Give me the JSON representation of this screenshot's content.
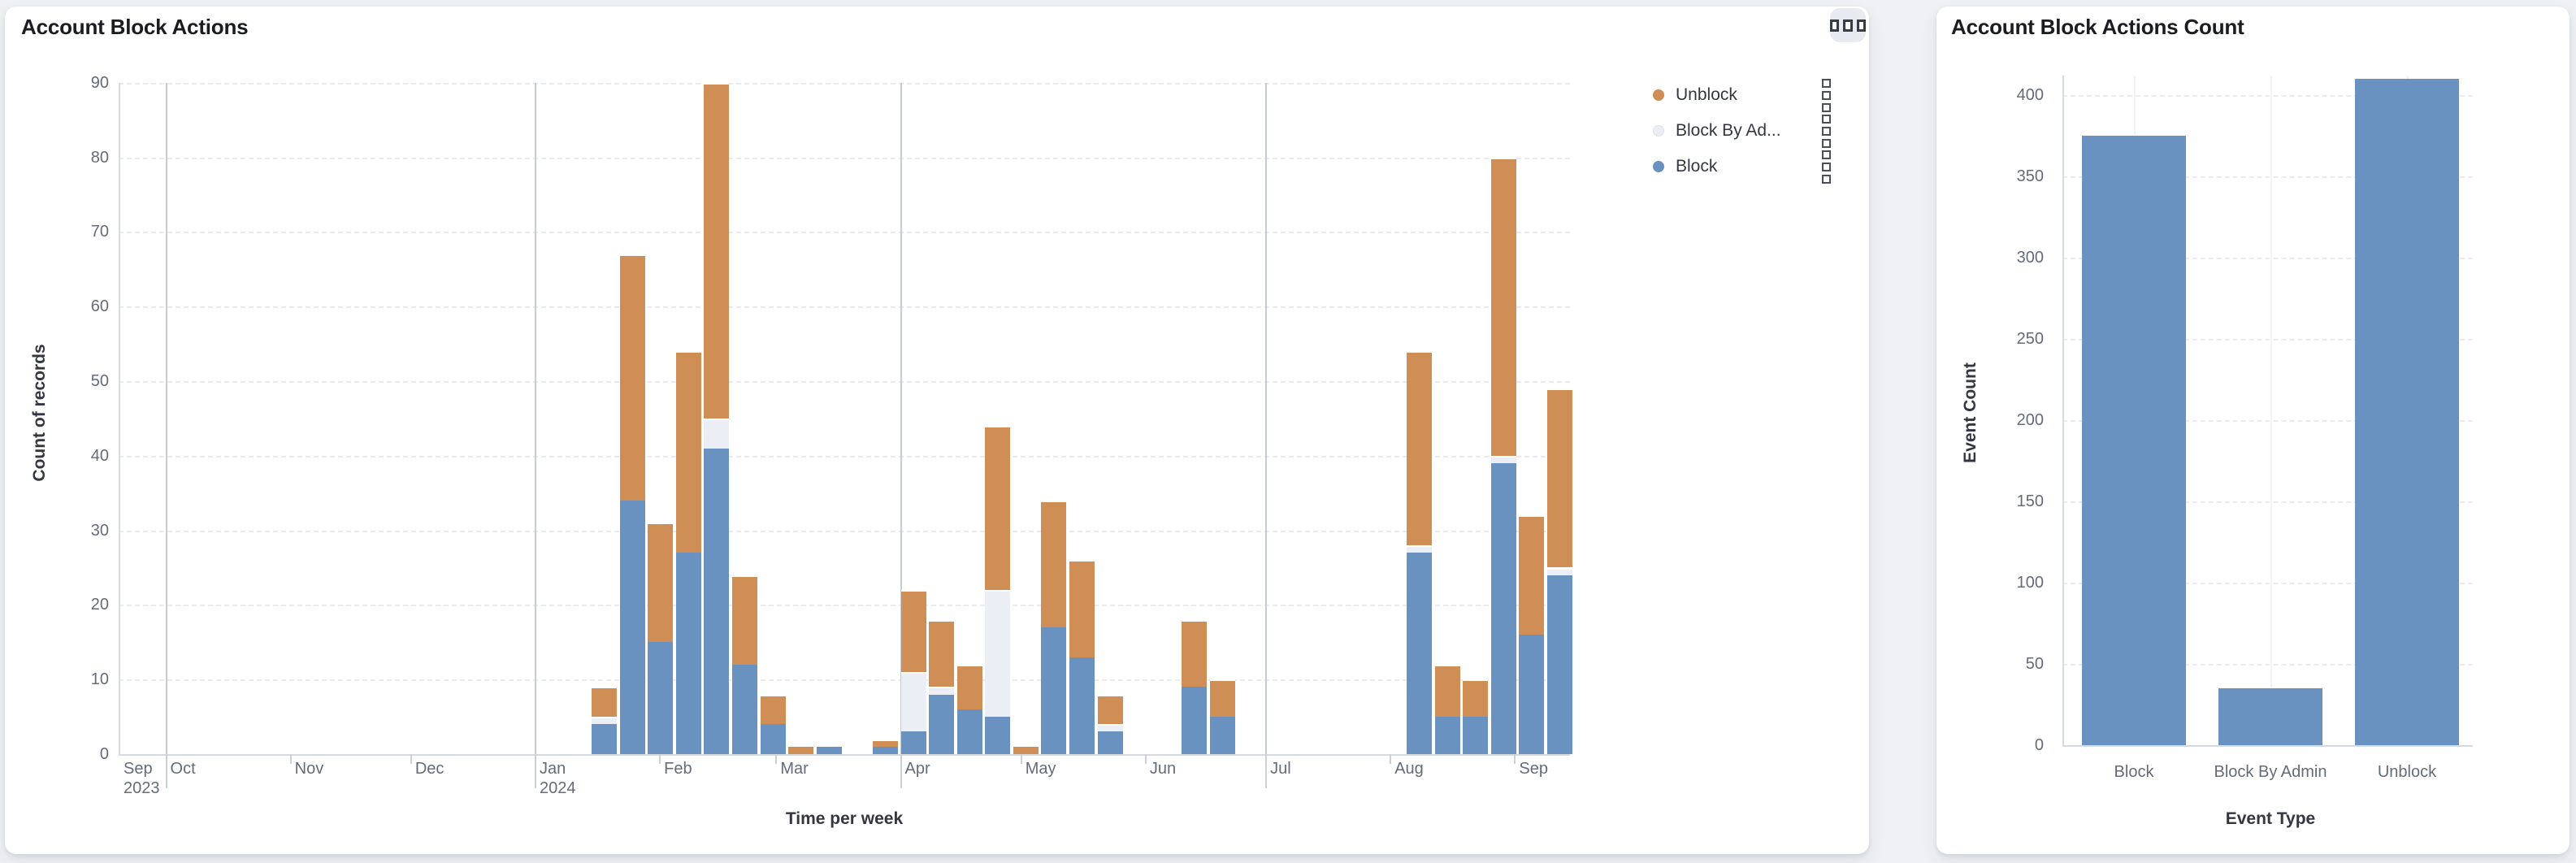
{
  "page": {
    "background": "#eef0f4"
  },
  "panels": {
    "left": {
      "title": "Account Block Actions",
      "options_button_icon": "boxes-horizontal-icon",
      "legend": {
        "action_icon": "boxes-vertical-icon",
        "items": [
          {
            "label": "Unblock",
            "color": "#ce8e55"
          },
          {
            "label": "Block By Ad...",
            "color": "#ebeff5"
          },
          {
            "label": "Block",
            "color": "#6a92c0"
          }
        ]
      },
      "y_axis": {
        "title": "Count of records",
        "ticks": [
          0,
          10,
          20,
          30,
          40,
          50,
          60,
          70,
          80,
          90
        ]
      },
      "x_axis": {
        "title": "Time per week",
        "months": [
          {
            "label": "Sep",
            "year": "2023",
            "date": "2023-09-18",
            "edge": true
          },
          {
            "label": "Oct",
            "date": "2023-10-01",
            "tall": true
          },
          {
            "label": "Nov",
            "date": "2023-11-01"
          },
          {
            "label": "Dec",
            "date": "2023-12-01"
          },
          {
            "label": "Jan",
            "year": "2024",
            "date": "2024-01-01",
            "tall": true
          },
          {
            "label": "Feb",
            "date": "2024-02-01"
          },
          {
            "label": "Mar",
            "date": "2024-03-01"
          },
          {
            "label": "Apr",
            "date": "2024-04-01",
            "tall": true
          },
          {
            "label": "May",
            "date": "2024-05-01"
          },
          {
            "label": "Jun",
            "date": "2024-06-01"
          },
          {
            "label": "Jul",
            "date": "2024-07-01",
            "tall": true
          },
          {
            "label": "Aug",
            "date": "2024-08-01"
          },
          {
            "label": "Sep",
            "date": "2024-09-01"
          }
        ],
        "quarter_gridlines": [
          "2023-10-01",
          "2024-01-01",
          "2024-04-01",
          "2024-07-01"
        ]
      }
    },
    "right": {
      "title": "Account Block Actions Count",
      "y_axis": {
        "title": "Event Count",
        "ticks": [
          0,
          50,
          100,
          150,
          200,
          250,
          300,
          350,
          400
        ]
      },
      "x_axis": {
        "title": "Event Type"
      }
    }
  },
  "chart_data": [
    {
      "type": "bar",
      "stacked": true,
      "title": "Account Block Actions",
      "xlabel": "Time per week",
      "ylabel": "Count of records",
      "ylim": [
        0,
        90
      ],
      "grid": "horizontal-dashed",
      "legend_position": "right",
      "x_unit": "week_start_date",
      "x": [
        "2024-01-15",
        "2024-01-22",
        "2024-01-29",
        "2024-02-05",
        "2024-02-12",
        "2024-02-19",
        "2024-02-26",
        "2024-03-04",
        "2024-03-11",
        "2024-03-25",
        "2024-04-01",
        "2024-04-08",
        "2024-04-15",
        "2024-04-22",
        "2024-04-29",
        "2024-05-06",
        "2024-05-13",
        "2024-05-20",
        "2024-06-10",
        "2024-06-17",
        "2024-08-05",
        "2024-08-12",
        "2024-08-19",
        "2024-08-26",
        "2024-09-02",
        "2024-09-09"
      ],
      "series": [
        {
          "name": "Block",
          "color": "#6a92c0",
          "values": [
            4,
            34,
            15,
            27,
            41,
            12,
            4,
            0,
            1,
            1,
            3,
            8,
            6,
            5,
            0,
            17,
            13,
            3,
            9,
            5,
            27,
            5,
            5,
            39,
            16,
            24
          ]
        },
        {
          "name": "Block By Admin",
          "color": "#ebeff5",
          "values": [
            1,
            0,
            0,
            0,
            4,
            0,
            0,
            0,
            0,
            0,
            8,
            1,
            0,
            17,
            0,
            0,
            0,
            1,
            0,
            0,
            1,
            0,
            0,
            1,
            0,
            1
          ]
        },
        {
          "name": "Unblock",
          "color": "#ce8e55",
          "values": [
            4,
            33,
            16,
            27,
            45,
            12,
            4,
            1,
            0,
            1,
            11,
            9,
            6,
            22,
            1,
            17,
            13,
            4,
            9,
            5,
            26,
            7,
            5,
            40,
            16,
            24
          ]
        }
      ],
      "totals": [
        9,
        67,
        31,
        54,
        90,
        24,
        8,
        1,
        1,
        2,
        22,
        18,
        12,
        44,
        1,
        34,
        26,
        8,
        18,
        10,
        54,
        12,
        10,
        80,
        32,
        49
      ]
    },
    {
      "type": "bar",
      "title": "Account Block Actions Count",
      "xlabel": "Event Type",
      "ylabel": "Event Count",
      "ylim": [
        0,
        420
      ],
      "grid": "horizontal-dashed",
      "categories": [
        "Block",
        "Block By Admin",
        "Unblock"
      ],
      "values": [
        375,
        35,
        410
      ],
      "bar_color": "#6a92c0"
    }
  ]
}
